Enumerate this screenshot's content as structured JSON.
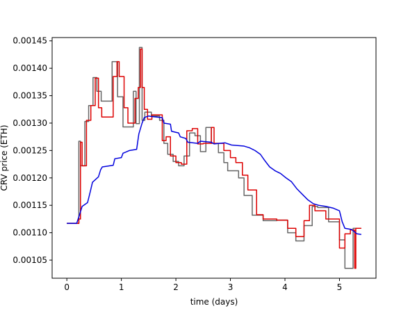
{
  "chart_data": {
    "type": "line",
    "xlabel": "time (days)",
    "ylabel": "CRV price (ETH)",
    "xlim": [
      -0.27,
      5.67
    ],
    "ylim": [
      0.001017,
      0.001456
    ],
    "xticks": [
      0,
      1,
      2,
      3,
      4,
      5
    ],
    "xtick_labels": [
      "0",
      "1",
      "2",
      "3",
      "4",
      "5"
    ],
    "yticks": [
      0.00105,
      0.0011,
      0.00115,
      0.0012,
      0.00125,
      0.0013,
      0.00135,
      0.0014,
      0.00145
    ],
    "ytick_labels": [
      "0.00105",
      "0.00110",
      "0.00115",
      "0.00120",
      "0.00125",
      "0.00130",
      "0.00135",
      "0.00140",
      "0.00145"
    ],
    "grid": false,
    "series": [
      {
        "color": "#666666",
        "points": [
          [
            0.0,
            0.001117
          ],
          [
            0.22,
            0.001117
          ],
          [
            0.22,
            0.001267
          ],
          [
            0.25,
            0.001267
          ],
          [
            0.25,
            0.001222
          ],
          [
            0.33,
            0.001222
          ],
          [
            0.33,
            0.001303
          ],
          [
            0.4,
            0.001303
          ],
          [
            0.4,
            0.001332
          ],
          [
            0.48,
            0.001332
          ],
          [
            0.48,
            0.001383
          ],
          [
            0.55,
            0.001383
          ],
          [
            0.55,
            0.001358
          ],
          [
            0.63,
            0.001358
          ],
          [
            0.63,
            0.00134
          ],
          [
            0.72,
            0.00134
          ],
          [
            0.72,
            0.00134
          ],
          [
            0.83,
            0.00134
          ],
          [
            0.83,
            0.001412
          ],
          [
            0.93,
            0.001412
          ],
          [
            0.93,
            0.001348
          ],
          [
            1.03,
            0.001348
          ],
          [
            1.03,
            0.001293
          ],
          [
            1.12,
            0.001293
          ],
          [
            1.12,
            0.001293
          ],
          [
            1.22,
            0.001293
          ],
          [
            1.22,
            0.001358
          ],
          [
            1.27,
            0.001358
          ],
          [
            1.27,
            0.001299
          ],
          [
            1.33,
            0.001299
          ],
          [
            1.33,
            0.001438
          ],
          [
            1.38,
            0.001438
          ],
          [
            1.38,
            0.001305
          ],
          [
            1.43,
            0.001305
          ],
          [
            1.43,
            0.00132
          ],
          [
            1.55,
            0.00132
          ],
          [
            1.55,
            0.001313
          ],
          [
            1.7,
            0.001313
          ],
          [
            1.7,
            0.001305
          ],
          [
            1.78,
            0.001305
          ],
          [
            1.78,
            0.001263
          ],
          [
            1.85,
            0.001263
          ],
          [
            1.85,
            0.001243
          ],
          [
            1.95,
            0.001243
          ],
          [
            1.95,
            0.00123
          ],
          [
            2.05,
            0.00123
          ],
          [
            2.05,
            0.001222
          ],
          [
            2.15,
            0.001222
          ],
          [
            2.15,
            0.00124
          ],
          [
            2.25,
            0.00124
          ],
          [
            2.25,
            0.001282
          ],
          [
            2.35,
            0.001282
          ],
          [
            2.35,
            0.001277
          ],
          [
            2.45,
            0.001277
          ],
          [
            2.45,
            0.001248
          ],
          [
            2.55,
            0.001248
          ],
          [
            2.55,
            0.001292
          ],
          [
            2.65,
            0.001292
          ],
          [
            2.65,
            0.001263
          ],
          [
            2.78,
            0.001263
          ],
          [
            2.78,
            0.001246
          ],
          [
            2.88,
            0.001246
          ],
          [
            2.88,
            0.001228
          ],
          [
            2.95,
            0.001228
          ],
          [
            2.95,
            0.001213
          ],
          [
            3.05,
            0.001213
          ],
          [
            3.05,
            0.001213
          ],
          [
            3.15,
            0.001213
          ],
          [
            3.15,
            0.0012
          ],
          [
            3.25,
            0.0012
          ],
          [
            3.25,
            0.001168
          ],
          [
            3.4,
            0.001168
          ],
          [
            3.4,
            0.001132
          ],
          [
            3.6,
            0.001132
          ],
          [
            3.6,
            0.001122
          ],
          [
            3.85,
            0.001122
          ],
          [
            3.85,
            0.001123
          ],
          [
            4.05,
            0.001123
          ],
          [
            4.05,
            0.0011
          ],
          [
            4.2,
            0.0011
          ],
          [
            4.2,
            0.001085
          ],
          [
            4.35,
            0.001085
          ],
          [
            4.35,
            0.001113
          ],
          [
            4.5,
            0.001113
          ],
          [
            4.5,
            0.001148
          ],
          [
            4.6,
            0.001148
          ],
          [
            4.6,
            0.001146
          ],
          [
            4.8,
            0.001146
          ],
          [
            4.8,
            0.00112
          ],
          [
            5.0,
            0.00112
          ],
          [
            5.0,
            0.001087
          ],
          [
            5.1,
            0.001087
          ],
          [
            5.1,
            0.001035
          ],
          [
            5.25,
            0.001035
          ],
          [
            5.25,
            0.001108
          ],
          [
            5.4,
            0.001108
          ]
        ]
      },
      {
        "color": "#dd0000",
        "points": [
          [
            0.0,
            0.001117
          ],
          [
            0.22,
            0.001117
          ],
          [
            0.22,
            0.001125
          ],
          [
            0.25,
            0.001125
          ],
          [
            0.25,
            0.001265
          ],
          [
            0.28,
            0.001265
          ],
          [
            0.28,
            0.001222
          ],
          [
            0.36,
            0.001222
          ],
          [
            0.36,
            0.001305
          ],
          [
            0.44,
            0.001305
          ],
          [
            0.44,
            0.001332
          ],
          [
            0.52,
            0.001332
          ],
          [
            0.52,
            0.001382
          ],
          [
            0.58,
            0.001382
          ],
          [
            0.58,
            0.001328
          ],
          [
            0.64,
            0.001328
          ],
          [
            0.64,
            0.001311
          ],
          [
            0.85,
            0.001311
          ],
          [
            0.85,
            0.001385
          ],
          [
            0.92,
            0.001385
          ],
          [
            0.92,
            0.001412
          ],
          [
            0.96,
            0.001412
          ],
          [
            0.96,
            0.001385
          ],
          [
            1.05,
            0.001385
          ],
          [
            1.05,
            0.001328
          ],
          [
            1.12,
            0.001328
          ],
          [
            1.12,
            0.0013
          ],
          [
            1.25,
            0.0013
          ],
          [
            1.25,
            0.001345
          ],
          [
            1.31,
            0.001345
          ],
          [
            1.31,
            0.001365
          ],
          [
            1.35,
            0.001365
          ],
          [
            1.35,
            0.001435
          ],
          [
            1.38,
            0.001435
          ],
          [
            1.38,
            0.001365
          ],
          [
            1.42,
            0.001365
          ],
          [
            1.42,
            0.001325
          ],
          [
            1.48,
            0.001325
          ],
          [
            1.48,
            0.001307
          ],
          [
            1.56,
            0.001307
          ],
          [
            1.56,
            0.001315
          ],
          [
            1.75,
            0.001315
          ],
          [
            1.75,
            0.001268
          ],
          [
            1.82,
            0.001268
          ],
          [
            1.82,
            0.001275
          ],
          [
            1.9,
            0.001275
          ],
          [
            1.9,
            0.00124
          ],
          [
            2.0,
            0.00124
          ],
          [
            2.0,
            0.001228
          ],
          [
            2.1,
            0.001228
          ],
          [
            2.1,
            0.001225
          ],
          [
            2.2,
            0.001225
          ],
          [
            2.2,
            0.001286
          ],
          [
            2.3,
            0.001286
          ],
          [
            2.3,
            0.00129
          ],
          [
            2.4,
            0.00129
          ],
          [
            2.4,
            0.001262
          ],
          [
            2.5,
            0.001262
          ],
          [
            2.5,
            0.001263
          ],
          [
            2.65,
            0.001263
          ],
          [
            2.65,
            0.001292
          ],
          [
            2.7,
            0.001292
          ],
          [
            2.7,
            0.001263
          ],
          [
            2.88,
            0.001263
          ],
          [
            2.88,
            0.00125
          ],
          [
            3.0,
            0.00125
          ],
          [
            3.0,
            0.001237
          ],
          [
            3.1,
            0.001237
          ],
          [
            3.1,
            0.001228
          ],
          [
            3.22,
            0.001228
          ],
          [
            3.22,
            0.001205
          ],
          [
            3.32,
            0.001205
          ],
          [
            3.32,
            0.001178
          ],
          [
            3.48,
            0.001178
          ],
          [
            3.48,
            0.001133
          ],
          [
            3.6,
            0.001133
          ],
          [
            3.6,
            0.001125
          ],
          [
            3.85,
            0.001125
          ],
          [
            3.85,
            0.001123
          ],
          [
            4.05,
            0.001123
          ],
          [
            4.05,
            0.001108
          ],
          [
            4.2,
            0.001108
          ],
          [
            4.2,
            0.001093
          ],
          [
            4.35,
            0.001093
          ],
          [
            4.35,
            0.001122
          ],
          [
            4.45,
            0.001122
          ],
          [
            4.45,
            0.00115
          ],
          [
            4.55,
            0.00115
          ],
          [
            4.55,
            0.00114
          ],
          [
            4.75,
            0.00114
          ],
          [
            4.75,
            0.001125
          ],
          [
            5.0,
            0.001125
          ],
          [
            5.0,
            0.001072
          ],
          [
            5.1,
            0.001072
          ],
          [
            5.1,
            0.001098
          ],
          [
            5.2,
            0.001098
          ],
          [
            5.2,
            0.001105
          ],
          [
            5.28,
            0.001105
          ],
          [
            5.28,
            0.001035
          ],
          [
            5.3,
            0.001035
          ],
          [
            5.3,
            0.001108
          ],
          [
            5.4,
            0.001108
          ]
        ]
      },
      {
        "color": "#0000dd",
        "points": [
          [
            0.0,
            0.001117
          ],
          [
            0.18,
            0.001117
          ],
          [
            0.24,
            0.001135
          ],
          [
            0.28,
            0.001148
          ],
          [
            0.38,
            0.001155
          ],
          [
            0.43,
            0.001175
          ],
          [
            0.47,
            0.001192
          ],
          [
            0.58,
            0.001202
          ],
          [
            0.62,
            0.001215
          ],
          [
            0.65,
            0.00122
          ],
          [
            0.85,
            0.001223
          ],
          [
            0.88,
            0.001235
          ],
          [
            1.0,
            0.001237
          ],
          [
            1.03,
            0.001245
          ],
          [
            1.08,
            0.001247
          ],
          [
            1.15,
            0.00125
          ],
          [
            1.28,
            0.001252
          ],
          [
            1.32,
            0.00128
          ],
          [
            1.38,
            0.0013
          ],
          [
            1.42,
            0.00131
          ],
          [
            1.5,
            0.001313
          ],
          [
            1.55,
            0.001312
          ],
          [
            1.75,
            0.00131
          ],
          [
            1.78,
            0.0013
          ],
          [
            1.9,
            0.001298
          ],
          [
            1.92,
            0.001285
          ],
          [
            2.05,
            0.001282
          ],
          [
            2.08,
            0.001275
          ],
          [
            2.18,
            0.001272
          ],
          [
            2.22,
            0.001265
          ],
          [
            2.4,
            0.001263
          ],
          [
            2.45,
            0.001267
          ],
          [
            2.65,
            0.001265
          ],
          [
            2.7,
            0.001262
          ],
          [
            2.9,
            0.001264
          ],
          [
            3.02,
            0.00126
          ],
          [
            3.25,
            0.001258
          ],
          [
            3.35,
            0.001255
          ],
          [
            3.45,
            0.00125
          ],
          [
            3.55,
            0.001243
          ],
          [
            3.62,
            0.001233
          ],
          [
            3.72,
            0.00122
          ],
          [
            3.82,
            0.001213
          ],
          [
            3.92,
            0.001208
          ],
          [
            4.02,
            0.0012
          ],
          [
            4.12,
            0.001193
          ],
          [
            4.22,
            0.00118
          ],
          [
            4.32,
            0.00117
          ],
          [
            4.42,
            0.00116
          ],
          [
            4.52,
            0.001153
          ],
          [
            4.62,
            0.00115
          ],
          [
            4.75,
            0.001148
          ],
          [
            4.88,
            0.001145
          ],
          [
            5.0,
            0.00114
          ],
          [
            5.05,
            0.00112
          ],
          [
            5.1,
            0.001108
          ],
          [
            5.22,
            0.001106
          ],
          [
            5.32,
            0.001098
          ],
          [
            5.4,
            0.001097
          ]
        ]
      }
    ]
  }
}
